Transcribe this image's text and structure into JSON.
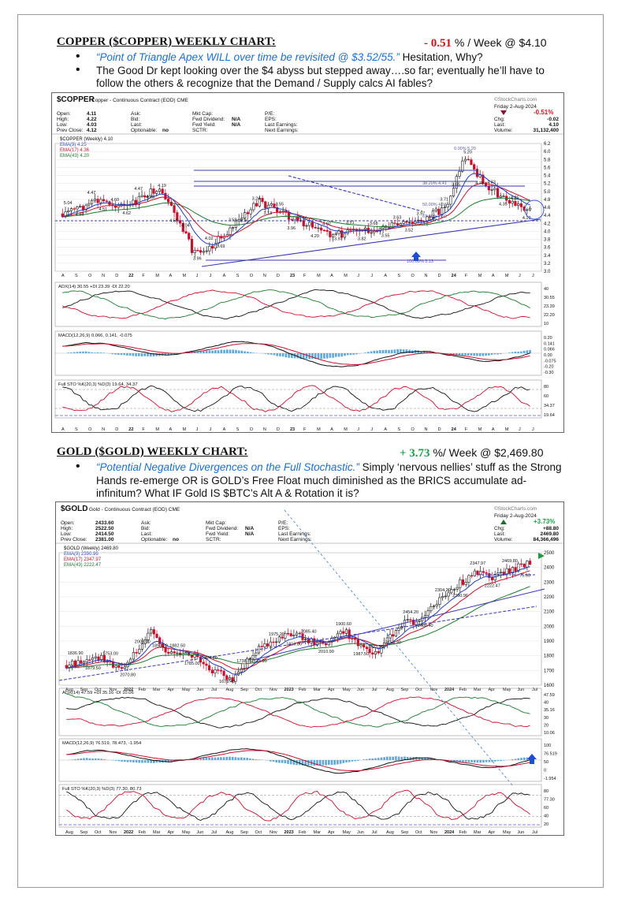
{
  "copper": {
    "heading": "COPPER ($COPPER) WEEKLY CHART",
    "heading_colon": ":",
    "change": "- 0.51",
    "change_suffix": " % / Week @ $4.10",
    "bullet1_quote": "“Point of Triangle Apex WILL over time be revisited @ $3.52/55.”",
    "bullet1_rest": " Hesitation, Why?",
    "bullet2": "The Good Dr kept looking over the $4 abyss but stepped away….so far; eventually he’ll have to follow the others & recognize that the Demand / Supply calcs AI fables?",
    "chart": {
      "symbol": "$COPPER",
      "name": "Copper - Continuous Contract (EOD) CME",
      "watermark": "©StockCharts.com",
      "date": "Friday 2-Aug-2024",
      "pct": "-0.51%",
      "quote_left": [
        [
          "Open:",
          "4.11"
        ],
        [
          "High:",
          "4.22"
        ],
        [
          "Low:",
          "4.03"
        ],
        [
          "Prev Close:",
          "4.12"
        ]
      ],
      "quote_mid": [
        [
          "Ask:",
          ""
        ],
        [
          "Bid:",
          ""
        ],
        [
          "Last:",
          ""
        ],
        [
          "Optionable:",
          "no"
        ]
      ],
      "quote_mid2": [
        [
          "Mkt Cap:",
          ""
        ],
        [
          "Fwd Dividend:",
          "N/A"
        ],
        [
          "Fwd Yield:",
          "N/A"
        ],
        [
          "SCTR:",
          ""
        ]
      ],
      "quote_right": [
        [
          "P/E:",
          ""
        ],
        [
          "EPS:",
          ""
        ],
        [
          "Last Earnings:",
          ""
        ],
        [
          "Next Earnings:",
          ""
        ]
      ],
      "quote_far": [
        [
          "Chg:",
          "-0.02"
        ],
        [
          "Last:",
          "4.10"
        ],
        [
          "Volume:",
          "31,132,400"
        ]
      ],
      "legend": [
        "$COPPER (Weekly) 4.10",
        "EMA(9) 4.25",
        "EMA(17) 4.36",
        "EMA(43) 4.20"
      ],
      "price_ticks": [
        "6.2",
        "6.0",
        "5.8",
        "5.6",
        "5.4",
        "5.2",
        "5.0",
        "4.8",
        "4.6",
        "4.4",
        "4.2",
        "4.0",
        "3.8",
        "3.6",
        "3.4",
        "3.2",
        "3.0"
      ],
      "fib_labels": [
        "0.00% 5.20",
        "38.20% 4.41",
        "50.00% 4.16",
        "61.80% 3.92",
        "100.00% 3.13"
      ],
      "price_labels": [
        "5.04",
        "4.86",
        "4.47",
        "4.51",
        "4.60",
        "4.62",
        "4.47",
        "4.28",
        "4.19",
        "4.58",
        "4.04",
        "3.96",
        "4.02",
        "3.69",
        "3.59",
        "3.36",
        "3.24",
        "3.13",
        "3.55",
        "3.96",
        "4.16",
        "4.20",
        "4.02",
        "3.97",
        "3.91",
        "3.82",
        "3.68",
        "3.55",
        "3.63",
        "3.52",
        "3.97",
        "3.95",
        "3.71",
        "3.65",
        "5.20",
        "4.70",
        "4.33",
        "4.35",
        "4.25",
        "4.10"
      ],
      "x_labels": [
        "A",
        "S",
        "O",
        "N",
        "D",
        "22",
        "F",
        "M",
        "A",
        "M",
        "J",
        "J",
        "A",
        "S",
        "O",
        "N",
        "D",
        "23",
        "F",
        "M",
        "A",
        "M",
        "J",
        "J",
        "A",
        "S",
        "O",
        "N",
        "D",
        "24",
        "F",
        "M",
        "A",
        "M",
        "J",
        "J"
      ],
      "adx_legend": "ADX(14) 30.55  +DI 23.39  -DI 22.20",
      "adx_ticks": [
        "40",
        "30.55",
        "23.39",
        "22.20",
        "10"
      ],
      "macd_legend": "MACD(12,26,9) 0.066, 0.141, -0.075",
      "macd_ticks": [
        "0.20",
        "0.141",
        "0.066",
        "0.00",
        "-0.075",
        "-0.20",
        "-0.30"
      ],
      "sto_legend": "Full STO %K(20,3) %D(3) 19.64, 34.37",
      "sto_ticks": [
        "80",
        "60",
        "34.37",
        "19.64"
      ]
    }
  },
  "gold": {
    "heading": "GOLD ($GOLD) WEEKLY CHART:",
    "change": "+ 3.73",
    "change_suffix": " %/ Week @ $2,469.80",
    "bullet1_quote": "“Potential Negative Divergences on the Full Stochastic.”",
    "bullet1_rest": " Simply ‘nervous nellies’ stuff as the Strong Hands re-emerge OR is GOLD’s Free Float much diminished as the BRICS accumulate ad- infinitum? What IF Gold IS $BTC’s Alt A & Rotation it is?",
    "chart": {
      "symbol": "$GOLD",
      "name": "Gold - Continuous Contract (EOD) CME",
      "watermark": "©StockCharts.com",
      "date": "Friday 2-Aug-2024",
      "pct": "+3.73%",
      "quote_left": [
        [
          "Open:",
          "2433.60"
        ],
        [
          "High:",
          "2522.50"
        ],
        [
          "Low:",
          "2414.50"
        ],
        [
          "Prev Close:",
          "2381.00"
        ]
      ],
      "quote_mid": [
        [
          "Ask:",
          ""
        ],
        [
          "Bid:",
          ""
        ],
        [
          "Last:",
          ""
        ],
        [
          "Optionable:",
          "no"
        ]
      ],
      "quote_mid2": [
        [
          "Mkt Cap:",
          ""
        ],
        [
          "Fwd Dividend:",
          "N/A"
        ],
        [
          "Fwd Yield:",
          "N/A"
        ],
        [
          "SCTR:",
          ""
        ]
      ],
      "quote_right": [
        [
          "P/E:",
          ""
        ],
        [
          "EPS:",
          ""
        ],
        [
          "Last Earnings:",
          ""
        ],
        [
          "Next Earnings:",
          ""
        ]
      ],
      "quote_far": [
        [
          "Chg:",
          "+88.80"
        ],
        [
          "Last:",
          "2469.80"
        ],
        [
          "Volume:",
          "84,366,496"
        ]
      ],
      "legend": [
        "$GOLD (Weekly) 2469.80",
        "EMA(9) 2390.96",
        "EMA(17) 2347.97",
        "EMA(43) 2222.47"
      ],
      "price_ticks": [
        "2500",
        "2400",
        "2300",
        "2200",
        "2100",
        "2000",
        "1900",
        "1800",
        "1700",
        "1600"
      ],
      "price_labels": [
        "1836.90",
        "1879.50",
        "1753.00",
        "2070.80",
        "2003.00",
        "1893.20",
        "1882.50",
        "1785.00",
        "1824.60",
        "1678.40",
        "1738.70",
        "1618.30",
        "1975.20",
        "1810.80",
        "2085.40",
        "2010.90",
        "1900.60",
        "1987.50",
        "1823.50",
        "2152.30",
        "2454.20",
        "2488.40",
        "2304.20",
        "2390.96",
        "2347.97",
        "2222.47",
        "2469.80",
        "75.90"
      ],
      "x_labels": [
        "Aug",
        "Sep",
        "Oct",
        "Nov",
        "2022",
        "Feb",
        "Mar",
        "Apr",
        "May",
        "Jun",
        "Jul",
        "Aug",
        "Sep",
        "Oct",
        "Nov",
        "2023",
        "Feb",
        "Mar",
        "Apr",
        "May",
        "Jun",
        "Jul",
        "Aug",
        "Sep",
        "Oct",
        "Nov",
        "2024",
        "Feb",
        "Mar",
        "Apr",
        "May",
        "Jun",
        "Jul"
      ],
      "adx_legend": "ADX(14) 47.59  +DI 35.16  -DI 10.06",
      "adx_ticks": [
        "47.59",
        "40",
        "35.16",
        "30",
        "20",
        "10.06"
      ],
      "macd_legend": "MACD(12,26,9) 76.519, 78.473, -1.954",
      "macd_ticks": [
        "100",
        "76.519",
        "50",
        "0",
        "-1.954"
      ],
      "sto_legend": "Full STO %K(20,3) %D(3) 77.30, 80.73",
      "sto_ticks": [
        "80",
        "77.30",
        "60",
        "40",
        "20"
      ]
    }
  },
  "colors": {
    "up_candle": "#1a1a1a",
    "down_candle": "#c8102e",
    "ema9": "#1f3fbf",
    "ema17": "#c8102e",
    "ema43": "#1e7a2e",
    "accent_blue": "#1a6fd0",
    "neg": "#d0131b",
    "pos": "#18a04a"
  }
}
